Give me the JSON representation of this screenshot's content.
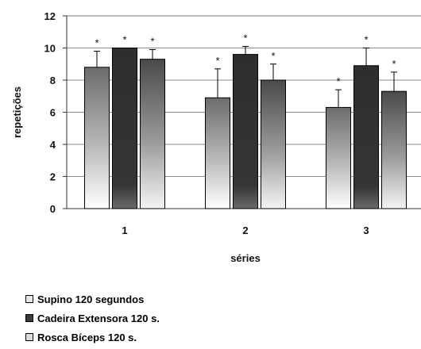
{
  "chart_data": {
    "type": "bar",
    "categories": [
      "1",
      "2",
      "3"
    ],
    "xlabel": "séries",
    "ylabel": "repetições",
    "ylim": [
      0,
      12
    ],
    "yticks": [
      "0",
      "2",
      "4",
      "6",
      "8",
      "10",
      "12"
    ],
    "grid": true,
    "legend_position": "bottom-left",
    "significance_marker": "*",
    "series": [
      {
        "name": "Supino 120 segundos",
        "values": [
          8.8,
          6.9,
          6.3
        ],
        "errors": [
          1.0,
          1.8,
          1.1
        ],
        "color": "light-gradient"
      },
      {
        "name": "Cadeira Extensora 120 s.",
        "values": [
          10.0,
          9.6,
          8.9
        ],
        "errors": [
          0.0,
          0.5,
          1.1
        ],
        "color": "dark-gradient"
      },
      {
        "name": "Rosca Bíceps 120 s.",
        "values": [
          9.3,
          8.0,
          7.3
        ],
        "errors": [
          0.6,
          1.0,
          1.2
        ],
        "color": "medium-gradient"
      }
    ]
  }
}
